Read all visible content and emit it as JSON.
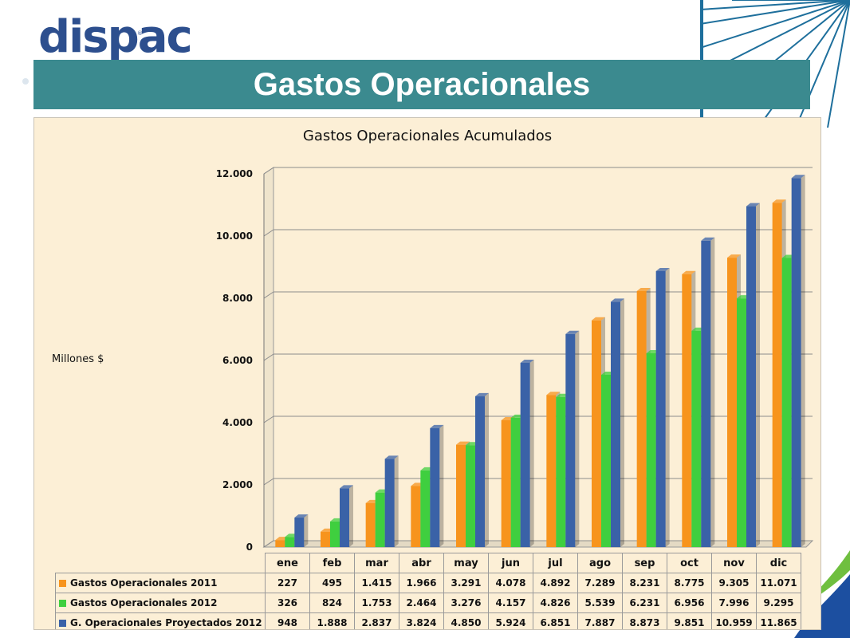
{
  "header": {
    "logo_text": "dispac",
    "slide_title": "Gastos Operacionales"
  },
  "chart_data": {
    "type": "bar",
    "title": "Gastos Operacionales  Acumulados",
    "xlabel": "",
    "ylabel": "Millones $",
    "ylim": [
      0,
      12000
    ],
    "yticks": [
      "0",
      "2.000",
      "4.000",
      "6.000",
      "8.000",
      "10.000",
      "12.000"
    ],
    "ytick_values": [
      0,
      2000,
      4000,
      6000,
      8000,
      10000,
      12000
    ],
    "grid": true,
    "legend": "table-below",
    "categories": [
      "ene",
      "feb",
      "mar",
      "abr",
      "may",
      "jun",
      "jul",
      "ago",
      "sep",
      "oct",
      "nov",
      "dic"
    ],
    "series": [
      {
        "name": "Gastos Operacionales 2011",
        "color": "#f7941d",
        "values": [
          227,
          495,
          1415,
          1966,
          3291,
          4078,
          4892,
          7289,
          8231,
          8775,
          9305,
          11071
        ],
        "labels": [
          "227",
          "495",
          "1.415",
          "1.966",
          "3.291",
          "4.078",
          "4.892",
          "7.289",
          "8.231",
          "8.775",
          "9.305",
          "11.071"
        ]
      },
      {
        "name": "Gastos Operacionales 2012",
        "color": "#3fcf3f",
        "values": [
          326,
          824,
          1753,
          2464,
          3276,
          4157,
          4826,
          5539,
          6231,
          6956,
          7996,
          9295
        ],
        "labels": [
          "326",
          "824",
          "1.753",
          "2.464",
          "3.276",
          "4.157",
          "4.826",
          "5.539",
          "6.231",
          "6.956",
          "7.996",
          "9.295"
        ]
      },
      {
        "name": "G. Operacionales Proyectados 2012",
        "color": "#3a62a7",
        "values": [
          948,
          1888,
          2837,
          3824,
          4850,
          5924,
          6851,
          7887,
          8873,
          9851,
          10959,
          11865
        ],
        "labels": [
          "948",
          "1.888",
          "2.837",
          "3.824",
          "4.850",
          "5.924",
          "6.851",
          "7.887",
          "8.873",
          "9.851",
          "10.959",
          "11.865"
        ]
      }
    ]
  }
}
